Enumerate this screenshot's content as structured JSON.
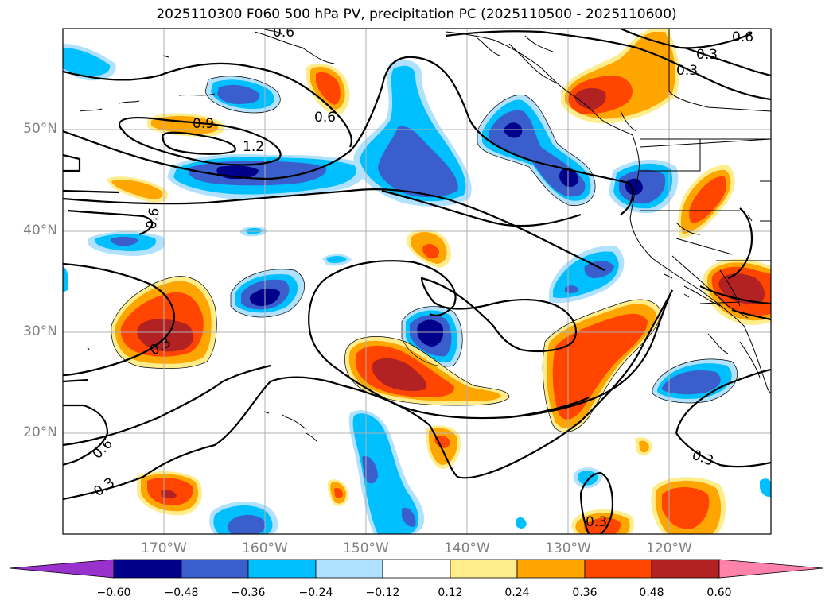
{
  "title": "2025110300 F060 500 hPa PV, precipitation PC (2025110500 - 2025110600)",
  "lat_labels": [
    "50°N",
    "40°N",
    "30°N",
    "20°N"
  ],
  "lon_labels": [
    "170°W",
    "160°W",
    "150°W",
    "140°W",
    "130°W",
    "120°W"
  ],
  "contour_labels": [
    "0.6",
    "0.6",
    "0.9",
    "1.2",
    "0.6",
    "0.6",
    "0.3",
    "0.3",
    "0.3",
    "0.6",
    "0.3",
    "0.3",
    "0.3"
  ],
  "colorbar": {
    "ticks": [
      "−0.60",
      "−0.48",
      "−0.36",
      "−0.24",
      "−0.12",
      "0.12",
      "0.24",
      "0.36",
      "0.48",
      "0.60"
    ],
    "colors": [
      "#9932CC",
      "#00008B",
      "#3A5FCD",
      "#00BFFF",
      "#B0E2FF",
      "#FFFFFF",
      "#FFEC8B",
      "#FFA500",
      "#FF4500",
      "#B22222",
      "#FF82AB"
    ]
  },
  "colors": {
    "gridline": "#B0B0B0",
    "coastline": "#000000",
    "contour": "#000000",
    "axis_label": "#808080"
  }
}
